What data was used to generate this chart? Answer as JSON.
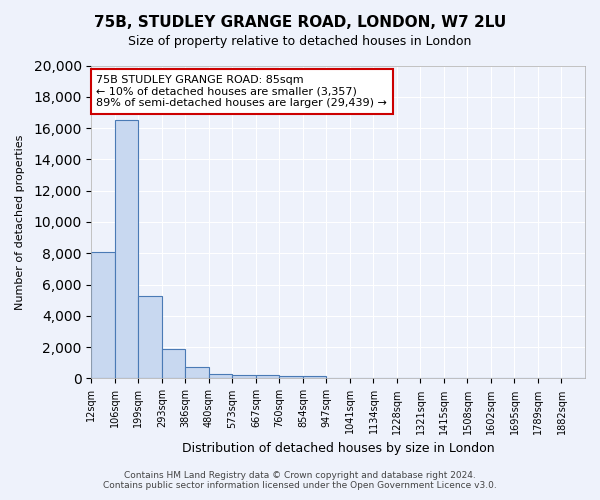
{
  "title": "75B, STUDLEY GRANGE ROAD, LONDON, W7 2LU",
  "subtitle": "Size of property relative to detached houses in London",
  "xlabel": "Distribution of detached houses by size in London",
  "ylabel": "Number of detached properties",
  "bin_labels": [
    "12sqm",
    "106sqm",
    "199sqm",
    "293sqm",
    "386sqm",
    "480sqm",
    "573sqm",
    "667sqm",
    "760sqm",
    "854sqm",
    "947sqm",
    "1041sqm",
    "1134sqm",
    "1228sqm",
    "1321sqm",
    "1415sqm",
    "1508sqm",
    "1602sqm",
    "1695sqm",
    "1789sqm",
    "1882sqm"
  ],
  "bar_heights": [
    8100,
    16500,
    5300,
    1850,
    700,
    310,
    220,
    190,
    170,
    150,
    0,
    0,
    0,
    0,
    0,
    0,
    0,
    0,
    0,
    0,
    0
  ],
  "bar_color": "#c8d8f0",
  "bar_edge_color": "#4a7ab5",
  "background_color": "#eef2fb",
  "grid_color": "#ffffff",
  "ylim": [
    0,
    20000
  ],
  "yticks": [
    0,
    2000,
    4000,
    6000,
    8000,
    10000,
    12000,
    14000,
    16000,
    18000,
    20000
  ],
  "annotation_text": "75B STUDLEY GRANGE ROAD: 85sqm\n← 10% of detached houses are smaller (3,357)\n89% of semi-detached houses are larger (29,439) →",
  "annotation_box_color": "#ffffff",
  "annotation_box_edge": "#cc0000",
  "footer_line1": "Contains HM Land Registry data © Crown copyright and database right 2024.",
  "footer_line2": "Contains public sector information licensed under the Open Government Licence v3.0."
}
